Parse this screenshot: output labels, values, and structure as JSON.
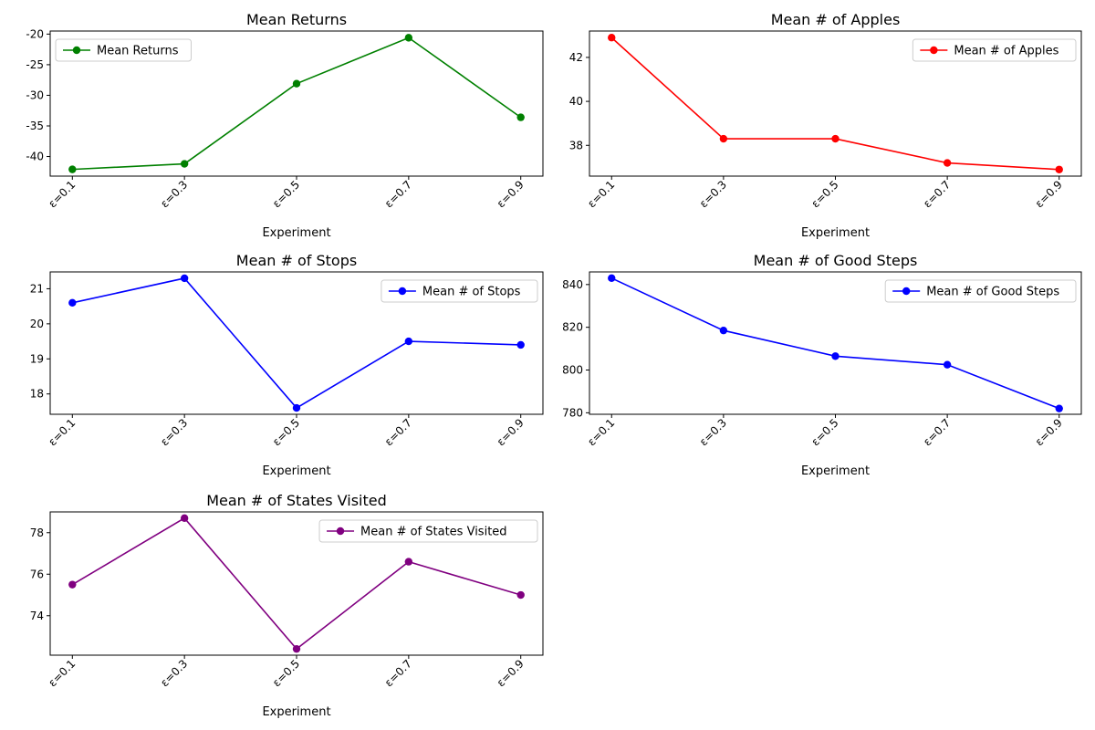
{
  "chart_data": [
    {
      "type": "line",
      "title": "Mean Returns",
      "xlabel": "Experiment",
      "ylabel": "",
      "categories": [
        "ε=0.1",
        "ε=0.3",
        "ε=0.5",
        "ε=0.7",
        "ε=0.9"
      ],
      "series": [
        {
          "name": "Mean Returns",
          "values": [
            -42.1,
            -41.2,
            -28.1,
            -20.6,
            -33.6
          ]
        }
      ],
      "ylim": [
        -43.2,
        -19.5
      ],
      "yticks": [
        -40,
        -35,
        -30,
        -25,
        -20
      ],
      "color": "#008000",
      "legend": "upper-left"
    },
    {
      "type": "line",
      "title": "Mean # of Apples",
      "xlabel": "Experiment",
      "ylabel": "",
      "categories": [
        "ε=0.1",
        "ε=0.3",
        "ε=0.5",
        "ε=0.7",
        "ε=0.9"
      ],
      "series": [
        {
          "name": "Mean # of Apples",
          "values": [
            42.9,
            38.3,
            38.3,
            37.2,
            36.9
          ]
        }
      ],
      "ylim": [
        36.6,
        43.2
      ],
      "yticks": [
        38,
        40,
        42
      ],
      "color": "#ff0000",
      "legend": "upper-right"
    },
    {
      "type": "line",
      "title": "Mean # of Stops",
      "xlabel": "Experiment",
      "ylabel": "",
      "categories": [
        "ε=0.1",
        "ε=0.3",
        "ε=0.5",
        "ε=0.7",
        "ε=0.9"
      ],
      "series": [
        {
          "name": "Mean # of Stops",
          "values": [
            20.6,
            21.3,
            17.6,
            19.5,
            19.4
          ]
        }
      ],
      "ylim": [
        17.42,
        21.48
      ],
      "yticks": [
        18,
        19,
        20,
        21
      ],
      "color": "#0000ff",
      "legend": "upper-right"
    },
    {
      "type": "line",
      "title": "Mean # of Good Steps",
      "xlabel": "Experiment",
      "ylabel": "",
      "categories": [
        "ε=0.1",
        "ε=0.3",
        "ε=0.5",
        "ε=0.7",
        "ε=0.9"
      ],
      "series": [
        {
          "name": "Mean # of Good Steps",
          "values": [
            843.0,
            818.5,
            806.5,
            802.5,
            782.0
          ]
        }
      ],
      "ylim": [
        779.3,
        845.9
      ],
      "yticks": [
        780,
        800,
        820,
        840
      ],
      "color": "#0000ff",
      "legend": "upper-right"
    },
    {
      "type": "line",
      "title": "Mean # of States Visited",
      "xlabel": "Experiment",
      "ylabel": "",
      "categories": [
        "ε=0.1",
        "ε=0.3",
        "ε=0.5",
        "ε=0.7",
        "ε=0.9"
      ],
      "series": [
        {
          "name": "Mean # of States Visited",
          "values": [
            75.5,
            78.7,
            72.4,
            76.6,
            75.0
          ]
        }
      ],
      "ylim": [
        72.1,
        79.0
      ],
      "yticks": [
        74,
        76,
        78
      ],
      "color": "#800080",
      "legend": "upper-right"
    }
  ]
}
